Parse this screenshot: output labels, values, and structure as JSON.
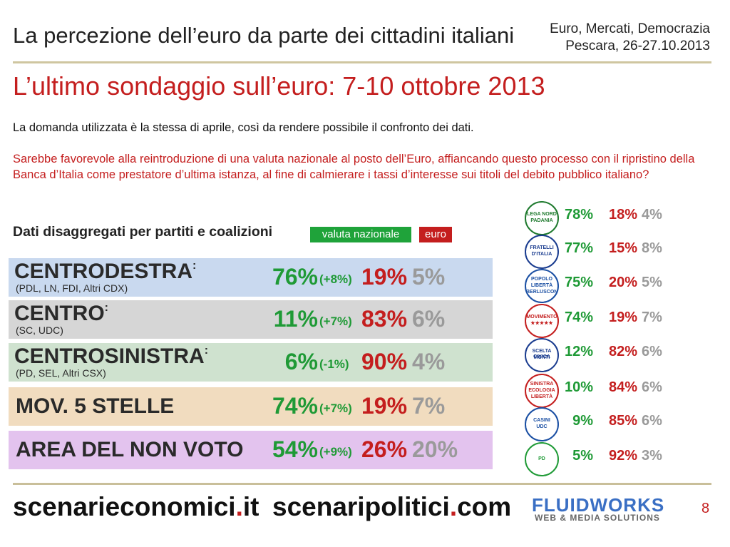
{
  "header": {
    "title": "La percezione dell’euro da parte dei cittadini italiani",
    "conference_line1": "Euro, Mercati, Democrazia",
    "conference_line2": "Pescara, 26-27.10.2013"
  },
  "subtitle": "L’ultimo sondaggio sull’euro: 7-10 ottobre 2013",
  "intro": "La domanda utilizzata è la stessa di aprile, così da rendere possibile il confronto dei dati.",
  "question": "Sarebbe favorevole alla reintroduzione di una valuta nazionale al posto dell’Euro, affiancando questo processo con il ripristino della Banca d’Italia come prestatore d’ultima istanza, al fine di calmierare i tassi d’interesse sui titoli del debito pubblico italiano?",
  "breakdown_label": "Dati disaggregati per partiti e coalizioni",
  "legend": {
    "green": "valuta nazionale",
    "red": "euro"
  },
  "colors": {
    "green": "#1f9a36",
    "red": "#c41e1e",
    "grey": "#9a9a9a"
  },
  "coalitions": [
    {
      "name": "CENTRODESTRA",
      "colon": ":",
      "sub": "(PDL, LN, FDI, Altri CDX)",
      "national": "76%",
      "delta": "(+8%)",
      "euro": "19%",
      "other": "5%",
      "bg": "#c9d9ef"
    },
    {
      "name": "CENTRO",
      "colon": ":",
      "sub": "(SC, UDC)",
      "national": "11%",
      "delta": "(+7%)",
      "euro": "83%",
      "other": "6%",
      "bg": "#d6d6d6"
    },
    {
      "name": "CENTROSINISTRA",
      "colon": ":",
      "sub": "(PD, SEL, Altri CSX)",
      "national": "6%",
      "delta": "(-1%)",
      "euro": "90%",
      "other": "4%",
      "bg": "#cfe2cf"
    },
    {
      "name": "MOV. 5 STELLE",
      "colon": "",
      "sub": "",
      "national": "74%",
      "delta": "(+7%)",
      "euro": "19%",
      "other": "7%",
      "bg": "#f1dcbf"
    },
    {
      "name": "AREA DEL NON VOTO",
      "colon": "",
      "sub": "",
      "national": "54%",
      "delta": "(+9%)",
      "euro": "26%",
      "other": "20%",
      "bg": "#e3c3ee"
    }
  ],
  "parties": [
    {
      "logo": "lega-nord-logo",
      "logo_text": [
        "LEGA NORD",
        "PADANIA"
      ],
      "national": "78%",
      "euro": "18%",
      "other": "4%"
    },
    {
      "logo": "fratelli-d-italia-logo",
      "logo_text": [
        "FRATELLI",
        "D'ITALIA"
      ],
      "national": "77%",
      "euro": "15%",
      "other": "8%"
    },
    {
      "logo": "popolo-della-liberta-logo",
      "logo_text": [
        "POPOLO",
        "LIBERTÀ",
        "BERLUSCONI"
      ],
      "national": "75%",
      "euro": "20%",
      "other": "5%"
    },
    {
      "logo": "movimento-5-stelle-logo",
      "logo_text": [
        "MOVIMENTO",
        "★★★★★"
      ],
      "national": "74%",
      "euro": "19%",
      "other": "7%"
    },
    {
      "logo": "scelta-civica-logo",
      "logo_text": [
        "SCELTA CIVICA",
        "MONTI"
      ],
      "national": "12%",
      "euro": "82%",
      "other": "6%"
    },
    {
      "logo": "sel-logo",
      "logo_text": [
        "SINISTRA",
        "ECOLOGIA",
        "LIBERTÀ"
      ],
      "national": "10%",
      "euro": "84%",
      "other": "6%"
    },
    {
      "logo": "udc-logo",
      "logo_text": [
        "CASINI",
        "UDC"
      ],
      "national": "9%",
      "euro": "85%",
      "other": "6%"
    },
    {
      "logo": "partito-democratico-logo",
      "logo_text": [
        "PD"
      ],
      "national": "5%",
      "euro": "92%",
      "other": "3%"
    }
  ],
  "footer": {
    "site1_main": "scenarieconomici",
    "site1_dot": ".",
    "site1_tld": "it",
    "site2_main": "scenaripolitici",
    "site2_dot": ".",
    "site2_tld": "com",
    "brand": "FLUIDWORKS",
    "brand_tagline": "WEB & MEDIA SOLUTIONS",
    "page_number": "8"
  }
}
